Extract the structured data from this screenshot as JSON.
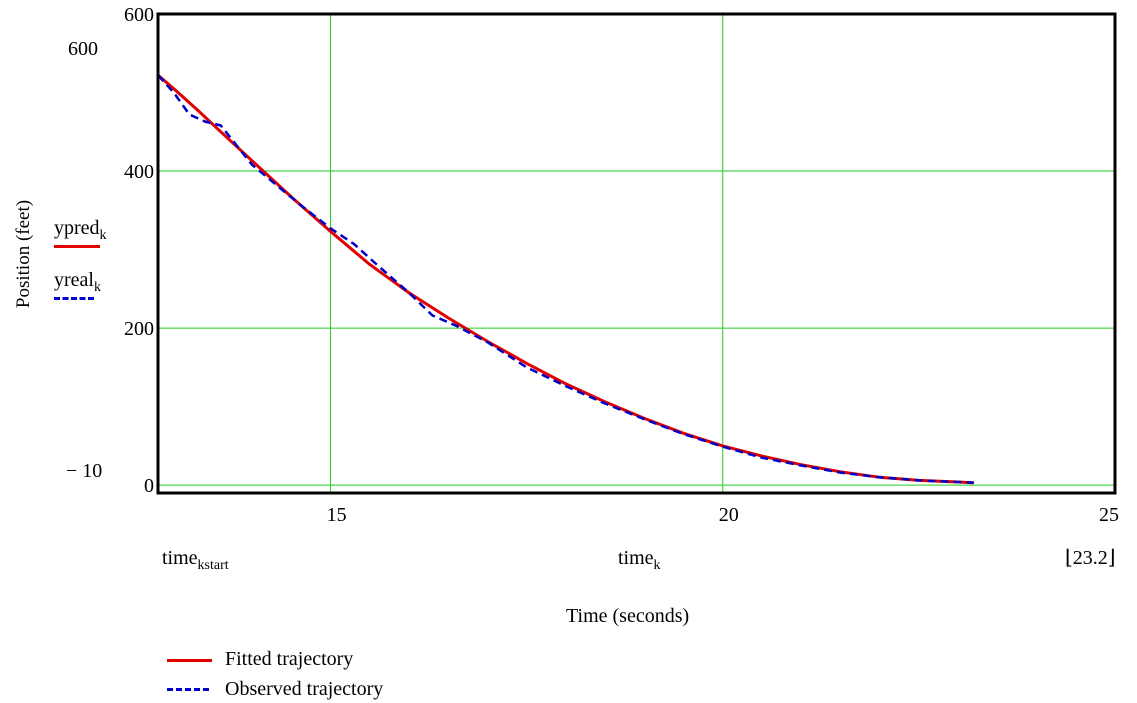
{
  "chart_data": {
    "type": "line",
    "xlabel": "Time (seconds)",
    "ylabel": "Position (feet)",
    "xlim": [
      12.8,
      25
    ],
    "ylim": [
      -10,
      600
    ],
    "grid": true,
    "x_ticks": [
      "15",
      "20",
      "25"
    ],
    "y_ticks": [
      "600",
      "400",
      "200",
      "0"
    ],
    "y_markers": [
      "600",
      "− 10"
    ],
    "x_markers": {
      "left": {
        "base": "time",
        "sub": "kstart"
      },
      "mid": {
        "base": "time",
        "sub": "k"
      },
      "right": "⌊23.2⌋"
    },
    "series": [
      {
        "name": "ypred",
        "sub": "k",
        "legend": "Fitted trajectory",
        "color": "#e00000",
        "style": "solid",
        "x": [
          12.8,
          13.0,
          13.3,
          13.6,
          14.0,
          14.5,
          15.0,
          15.5,
          16.0,
          16.5,
          17.0,
          17.5,
          18.0,
          18.5,
          19.0,
          19.5,
          20.0,
          20.5,
          21.0,
          21.5,
          22.0,
          22.5,
          23.0,
          23.2
        ],
        "y": [
          522,
          505,
          478,
          450,
          413,
          367,
          323,
          281,
          245,
          213,
          183,
          155,
          129,
          106,
          85,
          66,
          50,
          37,
          26,
          17,
          10,
          6,
          4,
          3
        ]
      },
      {
        "name": "yreal",
        "sub": "k",
        "legend": "Observed trajectory",
        "color": "#0000cc",
        "style": "dashed",
        "x": [
          12.8,
          13.0,
          13.2,
          13.4,
          13.6,
          13.8,
          14.0,
          14.3,
          14.6,
          15.0,
          15.3,
          15.6,
          16.0,
          16.3,
          16.6,
          17.0,
          17.5,
          18.0,
          18.5,
          19.0,
          19.5,
          20.0,
          20.5,
          21.0,
          21.5,
          22.0,
          22.5,
          23.0,
          23.2
        ],
        "y": [
          522,
          500,
          472,
          463,
          458,
          433,
          408,
          383,
          358,
          327,
          307,
          280,
          245,
          216,
          203,
          182,
          150,
          126,
          104,
          84,
          65,
          49,
          35,
          25,
          16,
          10,
          6,
          4,
          3
        ]
      }
    ]
  }
}
